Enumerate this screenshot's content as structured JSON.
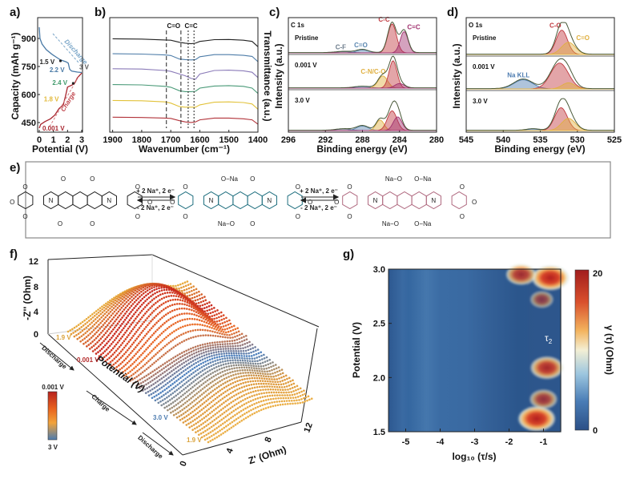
{
  "panel_labels": {
    "a": "a)",
    "b": "b)",
    "c": "c)",
    "d": "d)",
    "e": "e)",
    "f": "f)",
    "g": "g)"
  },
  "chart_data": [
    {
      "id": "a",
      "type": "line",
      "xlabel": "Potential (V)",
      "ylabel": "Capacity (mAh g⁻¹)",
      "xlim": [
        -0.1,
        3.1
      ],
      "ylim": [
        400,
        1010
      ],
      "xticks": [
        "0",
        "1",
        "2",
        "3"
      ],
      "yticks": [
        "450",
        "600",
        "750",
        "900"
      ],
      "series": [
        {
          "name": "Discharge",
          "color": "#4a7aa6",
          "x": [
            0,
            0.05,
            0.2,
            0.5,
            0.9,
            1.3,
            1.5,
            1.9,
            2.05,
            2.15,
            2.3,
            2.7,
            3.0
          ],
          "y": [
            960,
            900,
            870,
            840,
            815,
            795,
            785,
            775,
            768,
            735,
            725,
            720,
            718
          ]
        },
        {
          "name": "Charge",
          "color": "#a8262f",
          "x": [
            0,
            0.1,
            0.4,
            0.8,
            1.1,
            1.4,
            1.7,
            1.85,
            2.0,
            2.3,
            2.5,
            2.7,
            3.0
          ],
          "y": [
            420,
            440,
            455,
            470,
            490,
            525,
            545,
            590,
            640,
            650,
            660,
            690,
            715
          ]
        }
      ],
      "annotations": [
        {
          "text": "1.5 V",
          "x": 1.5,
          "y": 780,
          "color": "#222"
        },
        {
          "text": "3 V",
          "x": 3.0,
          "y": 718,
          "color": "#555"
        },
        {
          "text": "2.2 V",
          "x": 2.2,
          "y": 728,
          "color": "#4a7aa6"
        },
        {
          "text": "2.4 V",
          "x": 2.4,
          "y": 660,
          "color": "#3f9a6a"
        },
        {
          "text": "1.8 V",
          "x": 1.8,
          "y": 580,
          "color": "#e2b93a"
        },
        {
          "text": "0.001 V",
          "x": 0.0,
          "y": 425,
          "color": "#a8262f"
        }
      ],
      "arrow_labels": {
        "discharge": "Discharge",
        "charge": "Charge"
      }
    },
    {
      "id": "b",
      "type": "line",
      "xlabel": "Wavenumber (cm⁻¹)",
      "ylabel": "Transmittance (a.u.)",
      "xlim": [
        1910,
        1400
      ],
      "ylim": [
        0,
        6.5
      ],
      "xticks": [
        "1900",
        "1800",
        "1700",
        "1600",
        "1500",
        "1400"
      ],
      "x": [
        1900,
        1800,
        1720,
        1700,
        1670,
        1650,
        1630,
        1615,
        1600,
        1550,
        1500,
        1450,
        1420,
        1400
      ],
      "series": [
        {
          "color": "#222222",
          "y": [
            5.3,
            5.28,
            5.23,
            5.22,
            5.1,
            5.05,
            5.02,
            5.05,
            5.15,
            5.25,
            5.26,
            5.22,
            5.15,
            4.85
          ]
        },
        {
          "color": "#4d7ca8",
          "y": [
            4.45,
            4.43,
            4.38,
            4.35,
            4.15,
            4.12,
            4.1,
            4.12,
            4.28,
            4.4,
            4.4,
            4.36,
            4.3,
            4.0
          ]
        },
        {
          "color": "#8a7ab8",
          "y": [
            3.6,
            3.58,
            3.5,
            3.45,
            3.3,
            3.2,
            3.05,
            3.0,
            3.3,
            3.5,
            3.52,
            3.48,
            3.4,
            3.1
          ]
        },
        {
          "color": "#4a9a78",
          "y": [
            2.7,
            2.68,
            2.6,
            2.55,
            2.35,
            2.3,
            2.3,
            2.32,
            2.5,
            2.62,
            2.64,
            2.6,
            2.5,
            2.2
          ]
        },
        {
          "color": "#e2c23a",
          "y": [
            1.8,
            1.78,
            1.72,
            1.65,
            1.45,
            1.42,
            1.42,
            1.42,
            1.55,
            1.7,
            1.72,
            1.68,
            1.6,
            1.3
          ]
        },
        {
          "color": "#b2333a",
          "y": [
            0.85,
            0.83,
            0.8,
            0.78,
            0.65,
            0.58,
            0.55,
            0.58,
            0.7,
            0.8,
            0.8,
            0.76,
            0.7,
            0.45
          ]
        }
      ],
      "markers": [
        {
          "label": "C=O",
          "positions": [
            1715,
            1665
          ],
          "style": "dashed"
        },
        {
          "label": "C=C",
          "positions": [
            1640,
            1620
          ],
          "style": "dotted"
        }
      ]
    },
    {
      "id": "c",
      "type": "area",
      "title": "C 1s",
      "xlabel": "Binding energy (eV)",
      "ylabel": "Intensity (a.u.)",
      "xlim": [
        296,
        280
      ],
      "xticks": [
        "296",
        "292",
        "288",
        "284",
        "280"
      ],
      "spectra": [
        {
          "label": "Pristine",
          "peaks": [
            {
              "name": "C-F",
              "center": 290.0,
              "amp": 0.04,
              "fwhm": 2.0,
              "color": "#6a7a8a",
              "show": true
            },
            {
              "name": "C=O",
              "center": 288.0,
              "amp": 0.1,
              "fwhm": 1.5,
              "color": "#5a86b0",
              "show": true
            },
            {
              "name": "C-C",
              "center": 284.8,
              "amp": 0.95,
              "fwhm": 1.1,
              "color": "#c0383e",
              "show": true
            },
            {
              "name": "C=C",
              "center": 283.5,
              "amp": 0.7,
              "fwhm": 1.0,
              "color": "#a0306e",
              "show": true
            }
          ]
        },
        {
          "label": "0.001 V",
          "peaks": [
            {
              "name": "C=O",
              "center": 288.0,
              "amp": 0.05,
              "fwhm": 2.0,
              "color": "#5a86b0",
              "show": false
            },
            {
              "name": "C-N/C-O",
              "center": 285.8,
              "amp": 0.4,
              "fwhm": 1.2,
              "color": "#e0b040",
              "show": true
            },
            {
              "name": "C-C",
              "center": 284.7,
              "amp": 0.9,
              "fwhm": 1.0,
              "color": "#c0383e",
              "show": false
            },
            {
              "name": "C=C",
              "center": 284.0,
              "amp": 0.15,
              "fwhm": 1.2,
              "color": "#a0306e",
              "show": false
            }
          ]
        },
        {
          "label": "3.0 V",
          "peaks": [
            {
              "name": "C-F",
              "center": 290.0,
              "amp": 0.05,
              "fwhm": 2.0,
              "color": "#6a7a8a",
              "show": false
            },
            {
              "name": "C=O",
              "center": 288.0,
              "amp": 0.15,
              "fwhm": 1.5,
              "color": "#5a86b0",
              "show": false
            },
            {
              "name": "C-N/C-O",
              "center": 286.1,
              "amp": 0.35,
              "fwhm": 1.0,
              "color": "#e0b040",
              "show": false
            },
            {
              "name": "C-C",
              "center": 284.8,
              "amp": 0.65,
              "fwhm": 1.2,
              "color": "#c0383e",
              "show": false
            },
            {
              "name": "C=C",
              "center": 284.2,
              "amp": 0.45,
              "fwhm": 1.1,
              "color": "#a0306e",
              "show": false
            }
          ]
        }
      ]
    },
    {
      "id": "d",
      "type": "area",
      "title": "O 1s",
      "xlabel": "Binding energy (eV)",
      "ylabel": "Intensity (a.u.)",
      "xlim": [
        545,
        525
      ],
      "xticks": [
        "545",
        "540",
        "535",
        "530",
        "525"
      ],
      "spectra": [
        {
          "label": "Pristine",
          "peaks": [
            {
              "name": "C-O",
              "center": 532.1,
              "amp": 0.8,
              "fwhm": 1.8,
              "color": "#c0383e",
              "show": true
            },
            {
              "name": "C=O",
              "center": 531.2,
              "amp": 0.4,
              "fwhm": 2.2,
              "color": "#e0b040",
              "show": true
            }
          ]
        },
        {
          "label": "0.001 V",
          "peaks": [
            {
              "name": "Na KLL",
              "center": 537.3,
              "amp": 0.3,
              "fwhm": 3.0,
              "color": "#4d7cb0",
              "show": true
            },
            {
              "name": "C-O",
              "center": 532.4,
              "amp": 0.85,
              "fwhm": 2.8,
              "color": "#c0383e",
              "show": false
            },
            {
              "name": "C=O",
              "center": 531.2,
              "amp": 0.2,
              "fwhm": 2.0,
              "color": "#e0b040",
              "show": false
            }
          ]
        },
        {
          "label": "3.0 V",
          "peaks": [
            {
              "name": "Na KLL",
              "center": 536.0,
              "amp": 0.05,
              "fwhm": 2.0,
              "color": "#4d7cb0",
              "show": false
            },
            {
              "name": "C-O",
              "center": 532.2,
              "amp": 0.75,
              "fwhm": 2.0,
              "color": "#c0383e",
              "show": false
            },
            {
              "name": "C=O",
              "center": 531.2,
              "amp": 0.4,
              "fwhm": 2.2,
              "color": "#e0b040",
              "show": false
            }
          ]
        }
      ]
    },
    {
      "id": "f",
      "type": "scatter",
      "subtype": "3d",
      "zlabel": "-Z'' (Ohm)",
      "xlabel": "Z' (Ohm)",
      "ylabel": "Potential (V)",
      "zticks": [
        "0",
        "4",
        "8",
        "12"
      ],
      "xticks": [
        "0",
        "4",
        "8",
        "12"
      ],
      "direction_labels": [
        "Discharge",
        "Charge",
        "Discharge"
      ],
      "potential_labels": [
        {
          "text": "1.9 V",
          "color": "#d9a23a"
        },
        {
          "text": "0.001 V",
          "color": "#b42a2a"
        },
        {
          "text": "3.0 V",
          "color": "#4d7cb0"
        },
        {
          "text": "1.9 V",
          "color": "#d9a23a"
        }
      ],
      "colorbar": {
        "top": "0.001 V",
        "bottom": "3 V",
        "colors": [
          "#b8221e",
          "#e8621e",
          "#f2a33a",
          "#4d7cb0"
        ]
      }
    },
    {
      "id": "g",
      "type": "heatmap",
      "xlabel": "log₁₀ (τ/s)",
      "ylabel": "Potential (V)",
      "colorbar_label": "γ (τ) (Ohm)",
      "xlim": [
        -5.5,
        -0.5
      ],
      "ylim": [
        1.5,
        3.0
      ],
      "xticks": [
        "-5",
        "-4",
        "-3",
        "-2",
        "-1"
      ],
      "yticks": [
        "1.5",
        "2.0",
        "2.5",
        "3.0"
      ],
      "colorbar_ticks": [
        "0",
        "20"
      ],
      "clim": [
        0,
        20
      ],
      "annotation": {
        "text": "τ",
        "sub": "2"
      },
      "hotspots": [
        {
          "log_tau": -0.8,
          "potential": 2.92,
          "gamma": 20
        },
        {
          "log_tau": -1.65,
          "potential": 2.95,
          "gamma": 14
        },
        {
          "log_tau": -1.2,
          "potential": 1.62,
          "gamma": 20
        },
        {
          "log_tau": -0.9,
          "potential": 2.09,
          "gamma": 16
        },
        {
          "log_tau": -1.0,
          "potential": 1.8,
          "gamma": 11
        },
        {
          "log_tau": -1.05,
          "potential": 2.72,
          "gamma": 7
        }
      ]
    }
  ],
  "scheme": {
    "reaction_forward": "+ 2 Na⁺, 2 e⁻",
    "reaction_reverse": "- 2 Na⁺, 2 e⁻",
    "molecules": [
      {
        "color": "#222222",
        "substituents": [
          "O",
          "O",
          "O",
          "O"
        ]
      },
      {
        "color": "#1f6f7f",
        "substituents": [
          "O−Na",
          "O",
          "Na−O",
          "O"
        ]
      },
      {
        "color": "#b06a80",
        "substituents": [
          "Na−O",
          "O−Na",
          "Na−O",
          "O−Na"
        ]
      }
    ],
    "atom_N": "N",
    "atom_O": "O"
  }
}
